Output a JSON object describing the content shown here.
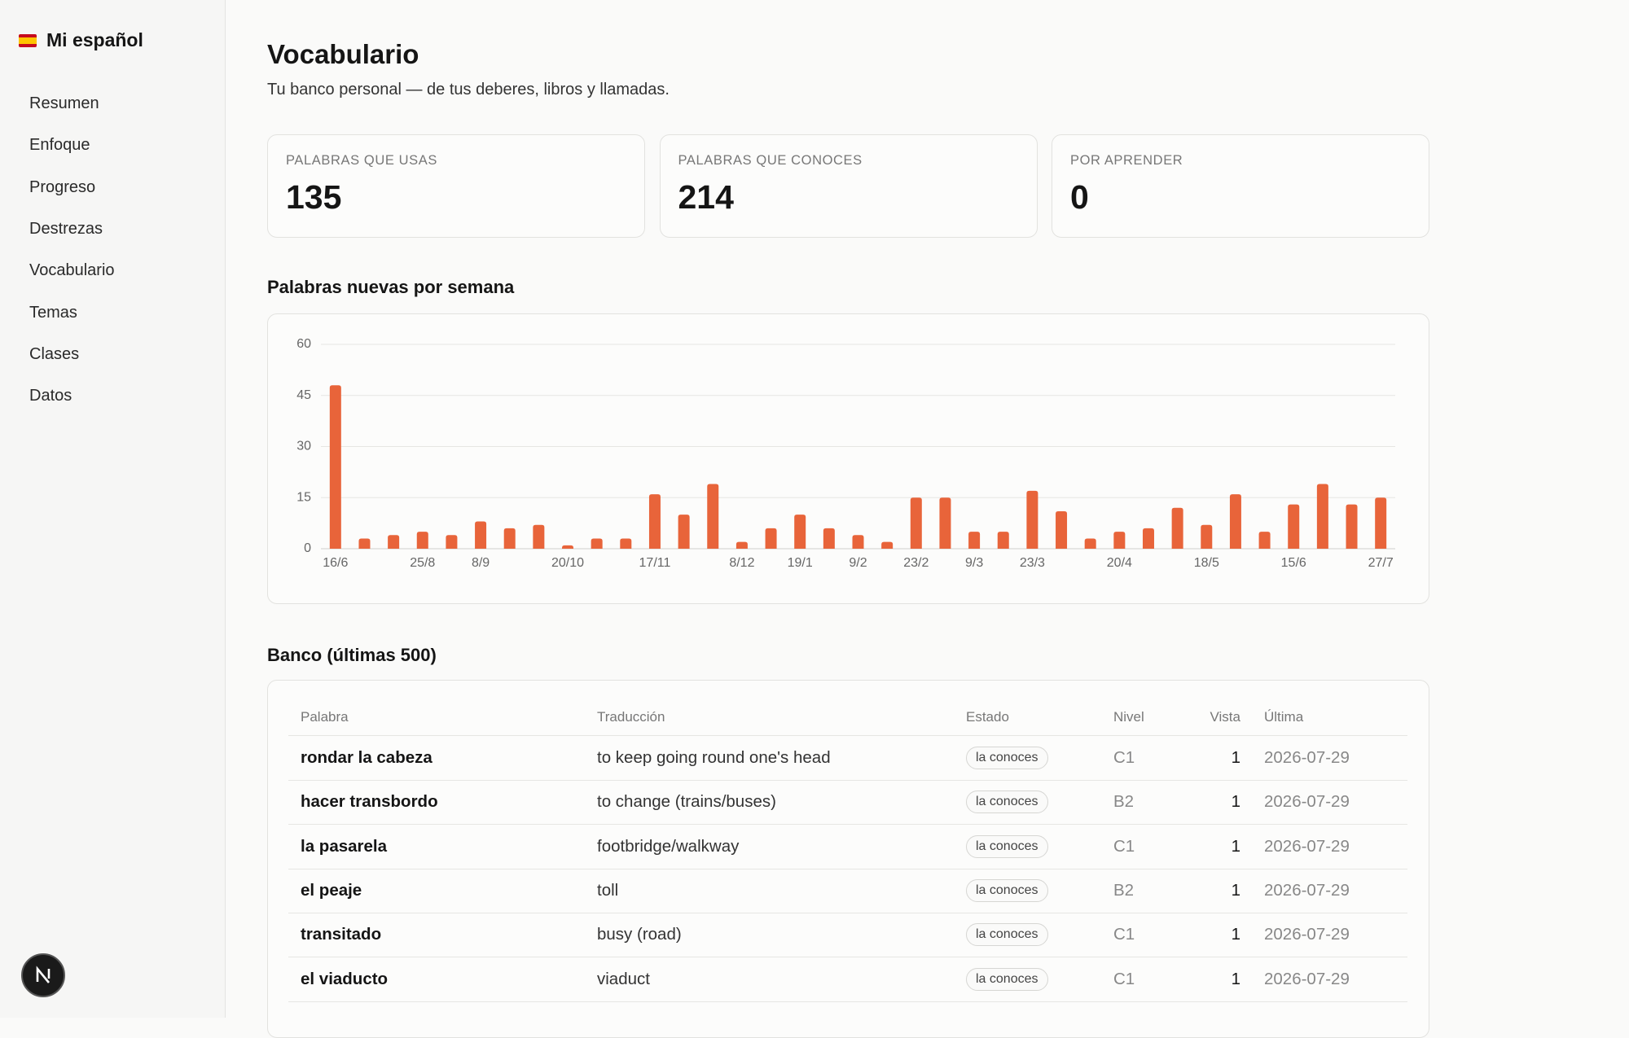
{
  "sidebar": {
    "brand": "Mi español",
    "nav": [
      "Resumen",
      "Enfoque",
      "Progreso",
      "Destrezas",
      "Vocabulario",
      "Temas",
      "Clases",
      "Datos"
    ]
  },
  "header": {
    "title": "Vocabulario",
    "subtitle": "Tu banco personal — de tus deberes, libros y llamadas."
  },
  "stats": [
    {
      "label": "PALABRAS QUE USAS",
      "value": 135
    },
    {
      "label": "PALABRAS QUE CONOCES",
      "value": 214
    },
    {
      "label": "POR APRENDER",
      "value": 0
    }
  ],
  "chart_data": {
    "type": "bar",
    "title": "Palabras nuevas por semana",
    "categories": [
      "16/6",
      null,
      null,
      "25/8",
      null,
      "8/9",
      null,
      null,
      "20/10",
      null,
      null,
      "17/11",
      null,
      null,
      "8/12",
      null,
      "19/1",
      null,
      "9/2",
      null,
      "23/2",
      null,
      "9/3",
      null,
      "23/3",
      null,
      null,
      "20/4",
      null,
      null,
      "18/5",
      null,
      null,
      "15/6",
      null,
      null,
      "27/7"
    ],
    "values": [
      48,
      3,
      4,
      5,
      4,
      8,
      6,
      7,
      1,
      3,
      3,
      16,
      10,
      19,
      2,
      6,
      10,
      6,
      4,
      2,
      15,
      15,
      5,
      5,
      17,
      11,
      3,
      5,
      6,
      12,
      7,
      16,
      5,
      13,
      19,
      13,
      15
    ],
    "color": "#e8643a",
    "ylim": [
      0,
      60
    ],
    "yticks": [
      0,
      15,
      30,
      45,
      60
    ],
    "grid": true
  },
  "table": {
    "title": "Banco (últimas 500)",
    "columns": [
      "Palabra",
      "Traducción",
      "Estado",
      "Nivel",
      "Vista",
      "Última"
    ],
    "rows": [
      [
        "rondar la cabeza",
        "to keep going round one's head",
        "la conoces",
        "C1",
        1,
        "2026-07-29"
      ],
      [
        "hacer transbordo",
        "to change (trains/buses)",
        "la conoces",
        "B2",
        1,
        "2026-07-29"
      ],
      [
        "la pasarela",
        "footbridge/walkway",
        "la conoces",
        "C1",
        1,
        "2026-07-29"
      ],
      [
        "el peaje",
        "toll",
        "la conoces",
        "B2",
        1,
        "2026-07-29"
      ],
      [
        "transitado",
        "busy (road)",
        "la conoces",
        "C1",
        1,
        "2026-07-29"
      ],
      [
        "el viaducto",
        "viaduct",
        "la conoces",
        "C1",
        1,
        "2026-07-29"
      ]
    ]
  }
}
